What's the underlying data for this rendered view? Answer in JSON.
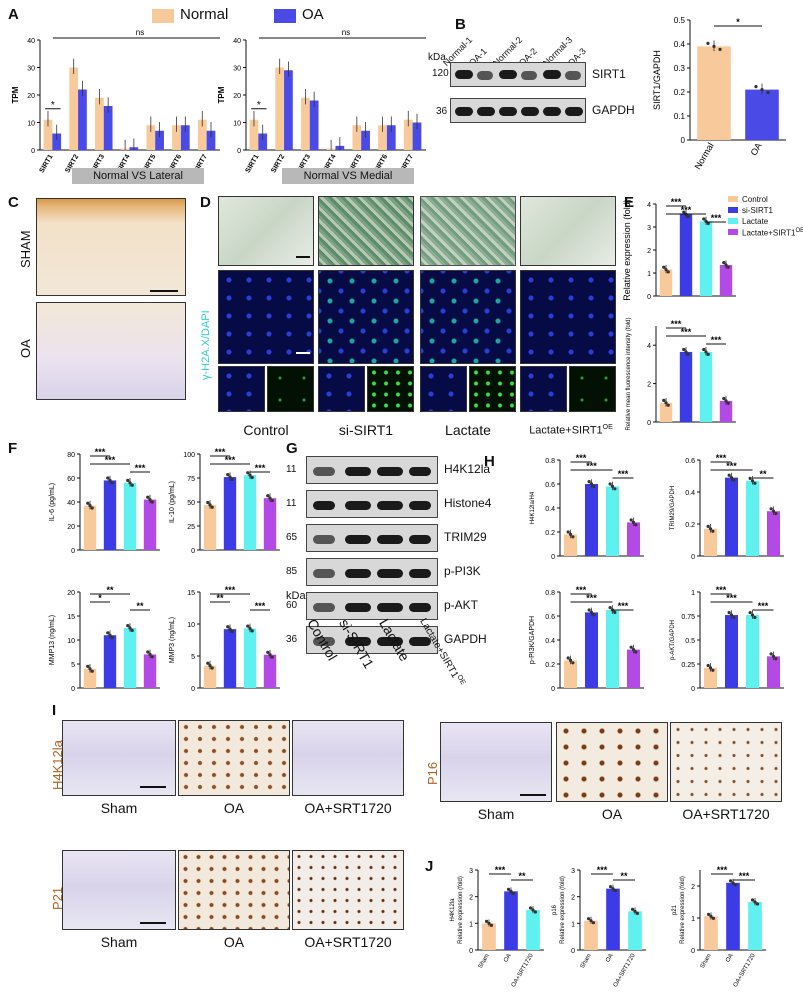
{
  "panel_labels": {
    "A": "A",
    "B": "B",
    "C": "C",
    "D": "D",
    "E": "E",
    "F": "F",
    "G": "G",
    "H": "H",
    "I": "I",
    "J": "J"
  },
  "colors": {
    "normal": "#f8c99a",
    "oa": "#4a4ae6",
    "control": "#f8c99a",
    "si_sirt1": "#3c3ce6",
    "lactate": "#5ff0f0",
    "lactate_sirt1": "#b44ae6"
  },
  "panel_a": {
    "legend": [
      "Normal",
      "OA"
    ],
    "ns": "ns",
    "ylabel": "TPM",
    "left_header": "Normal VS Lateral",
    "right_header": "Normal VS Medial",
    "sig": "*"
  },
  "panel_b": {
    "kda": "kDa",
    "lanes": [
      "Normal-1",
      "OA-1",
      "Normal-2",
      "OA-2",
      "Normal-3",
      "OA-3"
    ],
    "rows": [
      {
        "kda": "120",
        "label": "SIRT1"
      },
      {
        "kda": "36",
        "label": "GAPDH"
      }
    ],
    "sig": "*"
  },
  "panel_c": {
    "labels": [
      "SHAM",
      "OA"
    ]
  },
  "panel_d": {
    "ylabel": "γ-H2A.X/DAPI",
    "columns": [
      "Control",
      "si-SIRT1",
      "Lactate",
      "Lactate+SIRT1"
    ],
    "sup": "OE"
  },
  "panel_e": {
    "legend": [
      "Control",
      "si-SIRT1",
      "Lactate",
      "Lactate+SIRT1"
    ],
    "legend_sup": "OE",
    "sig": "***"
  },
  "panel_f": {
    "sig": "***"
  },
  "panel_g": {
    "rows": [
      {
        "kda": "11",
        "label": "H4K12la"
      },
      {
        "kda": "11",
        "label": "Histone4"
      },
      {
        "kda": "65",
        "label": "TRIM29"
      },
      {
        "kda": "85",
        "label": "p-PI3K"
      },
      {
        "kda": "60",
        "label": "p-AKT"
      },
      {
        "kda": "36",
        "label": "GAPDH"
      }
    ],
    "kda": "kDa",
    "lanes": [
      "Control",
      "si-SIRT1",
      "Lactate",
      "Lactate+SIRT1"
    ],
    "lane_sup": "OE"
  },
  "panel_i": {
    "rows": [
      {
        "label": "H4K12la",
        "captions": [
          "Sham",
          "OA",
          "OA+SRT1720"
        ]
      },
      {
        "label": "P16",
        "captions": [
          "Sham",
          "OA",
          "OA+SRT1720"
        ]
      },
      {
        "label": "P21",
        "captions": [
          "Sham",
          "OA",
          "OA+SRT1720"
        ]
      }
    ]
  },
  "chart_data": [
    {
      "id": "A-left",
      "type": "bar",
      "ylabel": "TPM",
      "ylim": [
        0,
        40
      ],
      "categories": [
        "SIRT1",
        "SIRT2",
        "SIRT3",
        "SIRT4",
        "SIRT5",
        "SIRT6",
        "SIRT7"
      ],
      "series": [
        {
          "name": "Normal",
          "values": [
            11,
            30,
            19,
            0.5,
            9,
            9,
            11
          ]
        },
        {
          "name": "OA",
          "values": [
            6,
            22,
            16,
            1,
            7,
            9,
            7
          ]
        }
      ],
      "annotations": [
        "*",
        "ns"
      ],
      "xlabel": "Normal VS Lateral"
    },
    {
      "id": "A-right",
      "type": "bar",
      "ylabel": "TPM",
      "ylim": [
        0,
        40
      ],
      "categories": [
        "SIRT1",
        "SIRT2",
        "SIRT3",
        "SIRT4",
        "SIRT5",
        "SIRT6",
        "SIRT7"
      ],
      "series": [
        {
          "name": "Normal",
          "values": [
            11,
            30,
            19,
            0.5,
            9,
            9,
            11
          ]
        },
        {
          "name": "OA",
          "values": [
            6,
            29,
            18,
            1.5,
            7,
            9,
            10
          ]
        }
      ],
      "annotations": [
        "*",
        "ns"
      ],
      "xlabel": "Normal VS Medial"
    },
    {
      "id": "B",
      "type": "bar",
      "ylabel": "SIRT1/GAPDH",
      "ylim": [
        0,
        0.5
      ],
      "yticks": [
        0.0,
        0.1,
        0.2,
        0.3,
        0.4,
        0.5
      ],
      "categories": [
        "Normal",
        "OA"
      ],
      "values": [
        0.39,
        0.21
      ],
      "annotations": [
        "*"
      ]
    },
    {
      "id": "E-top",
      "type": "bar",
      "ylabel": "Relative expression (fold)",
      "ylim": [
        0,
        4
      ],
      "categories": [
        "Control",
        "si-SIRT1",
        "Lactate",
        "Lactate+SIRT1OE"
      ],
      "values": [
        1.15,
        3.55,
        3.25,
        1.35
      ],
      "annotations": [
        "***",
        "***",
        "***"
      ]
    },
    {
      "id": "E-bottom",
      "type": "bar",
      "ylabel": "Relative mean fluorescence intensity (fold)",
      "ylim": [
        0,
        5
      ],
      "categories": [
        "Control",
        "si-SIRT1",
        "Lactate",
        "Lactate+SIRT1OE"
      ],
      "values": [
        1.0,
        3.65,
        3.65,
        1.1
      ],
      "annotations": [
        "***",
        "***",
        "***"
      ]
    },
    {
      "id": "F-IL6",
      "type": "bar",
      "ylabel": "IL-6 (pg/mL)",
      "ylim": [
        0,
        80
      ],
      "categories": [
        "Control",
        "si-SIRT1",
        "Lactate",
        "Lactate+SIRT1OE"
      ],
      "values": [
        37,
        58,
        56,
        42
      ],
      "annotations": [
        "***",
        "***",
        "***"
      ]
    },
    {
      "id": "F-IL10",
      "type": "bar",
      "ylabel": "IL-10 (pg/mL)",
      "ylim": [
        0,
        100
      ],
      "categories": [
        "Control",
        "si-SIRT1",
        "Lactate",
        "Lactate+SIRT1OE"
      ],
      "values": [
        47,
        76,
        78,
        54
      ],
      "annotations": [
        "***",
        "***",
        "***"
      ]
    },
    {
      "id": "F-MMP13",
      "type": "bar",
      "ylabel": "MMP13 (ng/mL)",
      "ylim": [
        0,
        20
      ],
      "categories": [
        "Control",
        "si-SIRT1",
        "Lactate",
        "Lactate+SIRT1OE"
      ],
      "values": [
        4,
        11,
        12.5,
        7
      ],
      "annotations": [
        "**",
        "*",
        "**"
      ]
    },
    {
      "id": "F-MMP3",
      "type": "bar",
      "ylabel": "MMP3 (ng/mL)",
      "ylim": [
        0,
        15
      ],
      "categories": [
        "Control",
        "si-SIRT1",
        "Lactate",
        "Lactate+SIRT1OE"
      ],
      "values": [
        3.5,
        9.2,
        9.3,
        5.2
      ],
      "annotations": [
        "***",
        "**",
        "***"
      ]
    },
    {
      "id": "H-H4K12la",
      "type": "bar",
      "ylabel": "H4K12la/H4",
      "ylim": [
        0,
        0.8
      ],
      "categories": [
        "Control",
        "si-SIRT1",
        "Lactate",
        "Lactate+SIRT1OE"
      ],
      "values": [
        0.18,
        0.6,
        0.58,
        0.28
      ],
      "annotations": [
        "***",
        "***",
        "***"
      ]
    },
    {
      "id": "H-TRIM29",
      "type": "bar",
      "ylabel": "TRIM29/GAPDH",
      "ylim": [
        0,
        0.6
      ],
      "categories": [
        "Control",
        "si-SIRT1",
        "Lactate",
        "Lactate+SIRT1OE"
      ],
      "values": [
        0.17,
        0.49,
        0.47,
        0.28
      ],
      "annotations": [
        "***",
        "***",
        "**"
      ]
    },
    {
      "id": "H-pPI3K",
      "type": "bar",
      "ylabel": "p-PI3K/GAPDH",
      "ylim": [
        0,
        0.8
      ],
      "categories": [
        "Control",
        "si-SIRT1",
        "Lactate",
        "Lactate+SIRT1OE"
      ],
      "values": [
        0.23,
        0.63,
        0.65,
        0.32
      ],
      "annotations": [
        "***",
        "***",
        "***"
      ]
    },
    {
      "id": "H-pAKT",
      "type": "bar",
      "ylabel": "p-AKT/GAPDH",
      "ylim": [
        0,
        1.0
      ],
      "categories": [
        "Control",
        "si-SIRT1",
        "Lactate",
        "Lactate+SIRT1OE"
      ],
      "values": [
        0.21,
        0.76,
        0.76,
        0.33
      ],
      "annotations": [
        "***",
        "***",
        "***"
      ]
    },
    {
      "id": "J-H4K12la",
      "type": "bar",
      "ylabel": "Relative expression (fold)",
      "ylabel2": "H4K12la",
      "ylim": [
        0,
        3
      ],
      "categories": [
        "Sham",
        "OA",
        "OA+SRT1720"
      ],
      "values": [
        1.0,
        2.2,
        1.5
      ],
      "annotations": [
        "***",
        "**"
      ]
    },
    {
      "id": "J-p16",
      "type": "bar",
      "ylabel": "Relative expression (fold)",
      "ylabel2": "p16",
      "ylim": [
        0,
        3
      ],
      "categories": [
        "Sham",
        "OA",
        "OA+SRT1720"
      ],
      "values": [
        1.1,
        2.3,
        1.45
      ],
      "annotations": [
        "***",
        "**"
      ]
    },
    {
      "id": "J-p21",
      "type": "bar",
      "ylabel": "Relative expression (fold)",
      "ylabel2": "p21",
      "ylim": [
        0,
        2.5
      ],
      "categories": [
        "Sham",
        "OA",
        "OA+SRT1720"
      ],
      "values": [
        1.05,
        2.1,
        1.5
      ],
      "annotations": [
        "***",
        "***"
      ]
    }
  ]
}
